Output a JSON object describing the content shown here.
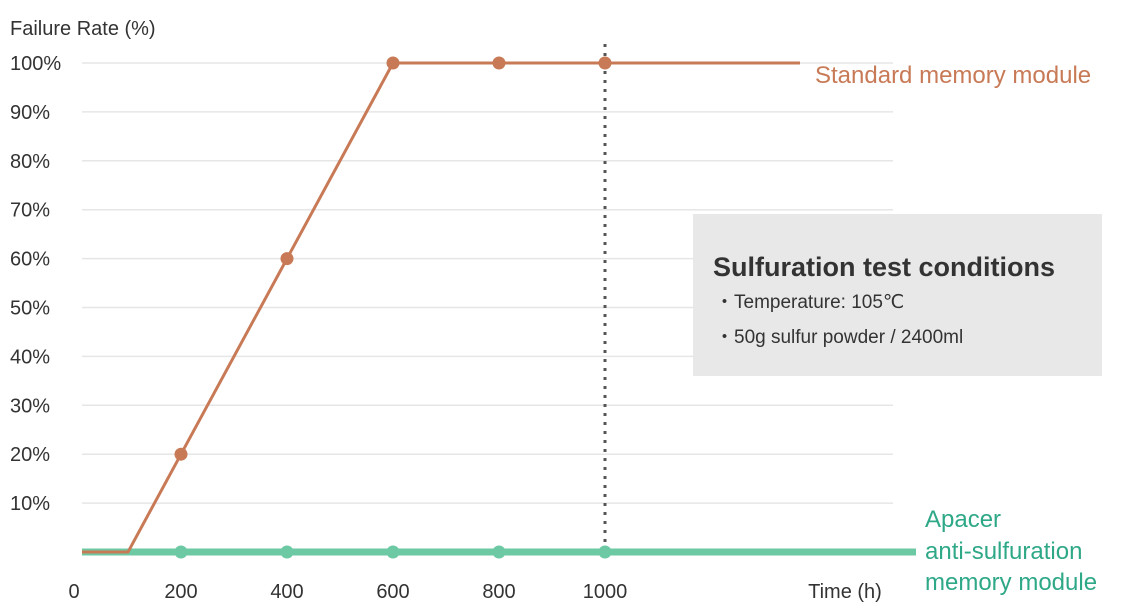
{
  "chart_data": {
    "type": "line",
    "ylabel": "Failure Rate (%)",
    "xlabel": "Time (h)",
    "x_ticks": [
      "0",
      "200",
      "400",
      "600",
      "800",
      "1000"
    ],
    "y_ticks": [
      "10%",
      "20%",
      "30%",
      "40%",
      "50%",
      "60%",
      "70%",
      "80%",
      "90%",
      "100%"
    ],
    "xlim": [
      0,
      1550
    ],
    "ylim": [
      0,
      110
    ],
    "grid": true,
    "reference_line": {
      "x": 1000,
      "style": "dotted"
    },
    "series": [
      {
        "name": "Standard memory module",
        "color": "#c87a56",
        "line_x": [
          0,
          100,
          200,
          400,
          600,
          800,
          1000,
          1490
        ],
        "line_y": [
          0,
          0,
          20,
          60,
          100,
          100,
          100,
          100
        ],
        "marker_x": [
          200,
          400,
          600,
          800,
          1000
        ],
        "marker_y": [
          20,
          60,
          100,
          100,
          100
        ]
      },
      {
        "name_lines": [
          "Apacer",
          "anti-sulfuration",
          "memory module"
        ],
        "color": "#6cc9a3",
        "line_x": [
          0,
          1600
        ],
        "line_y": [
          0,
          0
        ],
        "marker_x": [
          200,
          400,
          600,
          800,
          1000
        ],
        "marker_y": [
          0,
          0,
          0,
          0,
          0
        ]
      }
    ],
    "annotation": {
      "title": "Sulfuration test conditions",
      "items": [
        "・Temperature: 105℃",
        "・50g sulfur powder / 2400ml"
      ]
    }
  }
}
